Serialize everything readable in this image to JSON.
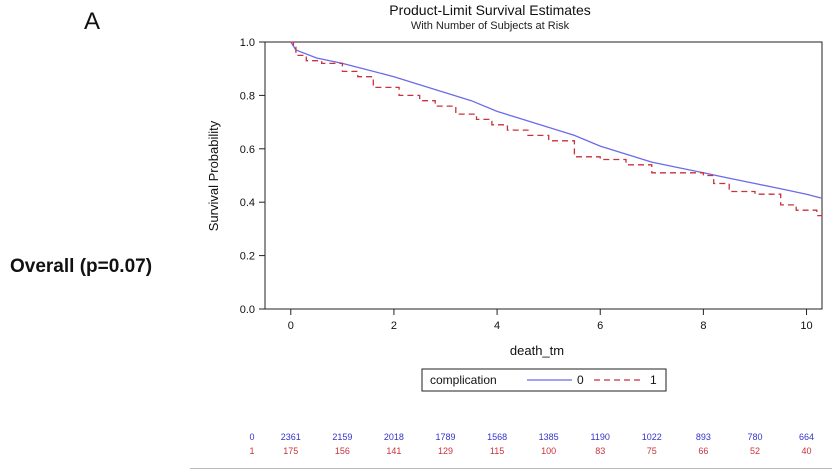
{
  "panel_label": "A",
  "side_label": "Overall (p=0.07)",
  "chart_data": {
    "type": "line",
    "title": "Product-Limit Survival Estimates",
    "subtitle": "With Number of Subjects at Risk",
    "xlabel": "death_tm",
    "ylabel": "Survival Probability",
    "xlim": [
      -0.5,
      10.3
    ],
    "ylim": [
      0.0,
      1.0
    ],
    "x_ticks": [
      0,
      2,
      4,
      6,
      8,
      10
    ],
    "y_ticks": [
      0.0,
      0.2,
      0.4,
      0.6,
      0.8,
      1.0
    ],
    "y_tick_labels": [
      "0.0",
      "0.2",
      "0.4",
      "0.6",
      "0.8",
      "1.0"
    ],
    "grid": false,
    "legend": {
      "title": "complication",
      "placement": "bottom-center",
      "entries": [
        {
          "label": "0",
          "color": "#6b6bea",
          "dash": "solid"
        },
        {
          "label": "1",
          "color": "#c8323c",
          "dash": "dashed"
        }
      ]
    },
    "series": [
      {
        "name": "0",
        "color": "#6b6bea",
        "step": false,
        "x": [
          0,
          0.1,
          0.5,
          1,
          1.5,
          2,
          2.5,
          3,
          3.5,
          4,
          4.5,
          5,
          5.5,
          6,
          6.5,
          7,
          7.5,
          8,
          8.5,
          9,
          9.5,
          10,
          10.3
        ],
        "y": [
          1.0,
          0.97,
          0.94,
          0.92,
          0.895,
          0.87,
          0.84,
          0.81,
          0.78,
          0.74,
          0.71,
          0.68,
          0.65,
          0.61,
          0.58,
          0.55,
          0.53,
          0.51,
          0.49,
          0.47,
          0.45,
          0.43,
          0.415
        ]
      },
      {
        "name": "1",
        "color": "#c8323c",
        "step": true,
        "x": [
          0,
          0.05,
          0.1,
          0.3,
          0.6,
          1,
          1.3,
          1.6,
          2.1,
          2.5,
          2.8,
          3.2,
          3.6,
          3.9,
          4.2,
          4.6,
          5.0,
          5.5,
          6.0,
          6.5,
          7.0,
          7.5,
          8.0,
          8.2,
          8.5,
          9.0,
          9.5,
          9.8,
          10.2,
          10.3
        ],
        "y": [
          1.0,
          0.98,
          0.95,
          0.93,
          0.92,
          0.89,
          0.87,
          0.83,
          0.8,
          0.78,
          0.76,
          0.73,
          0.71,
          0.69,
          0.67,
          0.65,
          0.63,
          0.57,
          0.56,
          0.54,
          0.51,
          0.51,
          0.5,
          0.47,
          0.44,
          0.43,
          0.39,
          0.37,
          0.35,
          0.34
        ]
      }
    ],
    "risk_table": {
      "rows": [
        {
          "group": "0",
          "color": "#3333cc",
          "values": [
            "2361",
            "2159",
            "2018",
            "1789",
            "1568",
            "1385",
            "1190",
            "1022",
            "893",
            "780",
            "664"
          ]
        },
        {
          "group": "1",
          "color": "#c8323c",
          "values": [
            "175",
            "156",
            "141",
            "129",
            "115",
            "100",
            "83",
            "75",
            "66",
            "52",
            "40"
          ]
        }
      ]
    }
  }
}
